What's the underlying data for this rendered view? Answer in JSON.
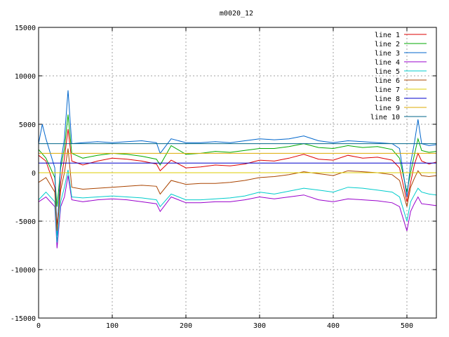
{
  "chart_data": {
    "type": "line",
    "title": "m0020_12",
    "xlabel": "",
    "ylabel": "",
    "xlim": [
      0,
      540
    ],
    "ylim": [
      -15000,
      15000
    ],
    "x_ticks": [
      0,
      100,
      200,
      300,
      400,
      500
    ],
    "y_ticks": [
      -15000,
      -10000,
      -5000,
      0,
      5000,
      10000,
      15000
    ],
    "grid": true,
    "legend_position": "top-right",
    "series": [
      {
        "name": "line 1",
        "color": "#dd0000",
        "values": [
          [
            0,
            1800
          ],
          [
            10,
            1200
          ],
          [
            22,
            -1500
          ],
          [
            25,
            -5500
          ],
          [
            30,
            -1000
          ],
          [
            35,
            1500
          ],
          [
            40,
            4500
          ],
          [
            45,
            1200
          ],
          [
            60,
            800
          ],
          [
            80,
            1200
          ],
          [
            100,
            1500
          ],
          [
            120,
            1400
          ],
          [
            140,
            1200
          ],
          [
            160,
            900
          ],
          [
            165,
            200
          ],
          [
            180,
            1300
          ],
          [
            200,
            500
          ],
          [
            220,
            600
          ],
          [
            240,
            800
          ],
          [
            260,
            700
          ],
          [
            280,
            900
          ],
          [
            300,
            1300
          ],
          [
            320,
            1200
          ],
          [
            340,
            1500
          ],
          [
            360,
            1900
          ],
          [
            380,
            1400
          ],
          [
            400,
            1300
          ],
          [
            420,
            1800
          ],
          [
            440,
            1500
          ],
          [
            460,
            1600
          ],
          [
            480,
            1300
          ],
          [
            490,
            500
          ],
          [
            500,
            -3000
          ],
          [
            505,
            -1000
          ],
          [
            510,
            800
          ],
          [
            515,
            2000
          ],
          [
            520,
            1200
          ],
          [
            530,
            900
          ],
          [
            540,
            1100
          ]
        ]
      },
      {
        "name": "line 2",
        "color": "#00aa00",
        "values": [
          [
            0,
            2400
          ],
          [
            10,
            1500
          ],
          [
            22,
            -500
          ],
          [
            25,
            -3500
          ],
          [
            30,
            500
          ],
          [
            35,
            2500
          ],
          [
            40,
            6000
          ],
          [
            45,
            2000
          ],
          [
            60,
            1500
          ],
          [
            80,
            1800
          ],
          [
            100,
            2000
          ],
          [
            120,
            1900
          ],
          [
            140,
            1700
          ],
          [
            160,
            1400
          ],
          [
            165,
            800
          ],
          [
            180,
            2800
          ],
          [
            200,
            1900
          ],
          [
            220,
            2000
          ],
          [
            240,
            2200
          ],
          [
            260,
            2100
          ],
          [
            280,
            2300
          ],
          [
            300,
            2500
          ],
          [
            320,
            2500
          ],
          [
            340,
            2700
          ],
          [
            360,
            3000
          ],
          [
            380,
            2600
          ],
          [
            400,
            2500
          ],
          [
            420,
            2800
          ],
          [
            440,
            2600
          ],
          [
            460,
            2700
          ],
          [
            480,
            2400
          ],
          [
            490,
            1500
          ],
          [
            500,
            -2000
          ],
          [
            505,
            0
          ],
          [
            510,
            1800
          ],
          [
            515,
            3500
          ],
          [
            520,
            2300
          ],
          [
            530,
            2100
          ],
          [
            540,
            2200
          ]
        ]
      },
      {
        "name": "line 3",
        "color": "#0066cc",
        "values": [
          [
            0,
            3000
          ],
          [
            5,
            5000
          ],
          [
            10,
            3500
          ],
          [
            22,
            500
          ],
          [
            25,
            -6500
          ],
          [
            30,
            1000
          ],
          [
            35,
            3500
          ],
          [
            40,
            8500
          ],
          [
            45,
            3000
          ],
          [
            60,
            3100
          ],
          [
            80,
            3200
          ],
          [
            100,
            3100
          ],
          [
            120,
            3200
          ],
          [
            140,
            3300
          ],
          [
            160,
            3100
          ],
          [
            165,
            2000
          ],
          [
            180,
            3500
          ],
          [
            200,
            3100
          ],
          [
            220,
            3100
          ],
          [
            240,
            3200
          ],
          [
            260,
            3100
          ],
          [
            280,
            3300
          ],
          [
            300,
            3500
          ],
          [
            320,
            3400
          ],
          [
            340,
            3500
          ],
          [
            360,
            3800
          ],
          [
            380,
            3300
          ],
          [
            400,
            3100
          ],
          [
            420,
            3300
          ],
          [
            440,
            3200
          ],
          [
            460,
            3100
          ],
          [
            480,
            3000
          ],
          [
            490,
            2500
          ],
          [
            500,
            -2500
          ],
          [
            505,
            1000
          ],
          [
            510,
            3000
          ],
          [
            515,
            5500
          ],
          [
            520,
            3000
          ],
          [
            530,
            2800
          ],
          [
            540,
            2900
          ]
        ]
      },
      {
        "name": "line 4",
        "color": "#9900cc",
        "values": [
          [
            0,
            -3000
          ],
          [
            10,
            -2500
          ],
          [
            22,
            -3500
          ],
          [
            25,
            -7800
          ],
          [
            30,
            -3500
          ],
          [
            35,
            -2500
          ],
          [
            40,
            -300
          ],
          [
            45,
            -2800
          ],
          [
            60,
            -3000
          ],
          [
            80,
            -2800
          ],
          [
            100,
            -2700
          ],
          [
            120,
            -2800
          ],
          [
            140,
            -3000
          ],
          [
            160,
            -3200
          ],
          [
            165,
            -4000
          ],
          [
            180,
            -2500
          ],
          [
            200,
            -3100
          ],
          [
            220,
            -3100
          ],
          [
            240,
            -3000
          ],
          [
            260,
            -3000
          ],
          [
            280,
            -2800
          ],
          [
            300,
            -2500
          ],
          [
            320,
            -2700
          ],
          [
            340,
            -2500
          ],
          [
            360,
            -2300
          ],
          [
            380,
            -2800
          ],
          [
            400,
            -3000
          ],
          [
            420,
            -2700
          ],
          [
            440,
            -2800
          ],
          [
            460,
            -2900
          ],
          [
            480,
            -3100
          ],
          [
            490,
            -3500
          ],
          [
            500,
            -6000
          ],
          [
            505,
            -4000
          ],
          [
            510,
            -3200
          ],
          [
            515,
            -2500
          ],
          [
            520,
            -3200
          ],
          [
            530,
            -3300
          ],
          [
            540,
            -3400
          ]
        ]
      },
      {
        "name": "line 5",
        "color": "#00cccc",
        "values": [
          [
            0,
            -2800
          ],
          [
            10,
            -2000
          ],
          [
            22,
            -3000
          ],
          [
            25,
            -7200
          ],
          [
            30,
            -3000
          ],
          [
            35,
            -1500
          ],
          [
            40,
            300
          ],
          [
            45,
            -2500
          ],
          [
            60,
            -2600
          ],
          [
            80,
            -2500
          ],
          [
            100,
            -2400
          ],
          [
            120,
            -2500
          ],
          [
            140,
            -2600
          ],
          [
            160,
            -2800
          ],
          [
            165,
            -3500
          ],
          [
            180,
            -2200
          ],
          [
            200,
            -2800
          ],
          [
            220,
            -2800
          ],
          [
            240,
            -2700
          ],
          [
            260,
            -2600
          ],
          [
            280,
            -2400
          ],
          [
            300,
            -2000
          ],
          [
            320,
            -2200
          ],
          [
            340,
            -1900
          ],
          [
            360,
            -1600
          ],
          [
            380,
            -1800
          ],
          [
            400,
            -2000
          ],
          [
            420,
            -1500
          ],
          [
            440,
            -1600
          ],
          [
            460,
            -1800
          ],
          [
            480,
            -2000
          ],
          [
            490,
            -2500
          ],
          [
            500,
            -5000
          ],
          [
            505,
            -3000
          ],
          [
            510,
            -2300
          ],
          [
            515,
            -1600
          ],
          [
            520,
            -2000
          ],
          [
            530,
            -2200
          ],
          [
            540,
            -2300
          ]
        ]
      },
      {
        "name": "line 6",
        "color": "#aa4400",
        "values": [
          [
            0,
            -1000
          ],
          [
            10,
            -500
          ],
          [
            22,
            -2000
          ],
          [
            25,
            -6000
          ],
          [
            30,
            -1800
          ],
          [
            35,
            0
          ],
          [
            40,
            2500
          ],
          [
            45,
            -1500
          ],
          [
            60,
            -1700
          ],
          [
            80,
            -1600
          ],
          [
            100,
            -1500
          ],
          [
            120,
            -1400
          ],
          [
            140,
            -1300
          ],
          [
            160,
            -1400
          ],
          [
            165,
            -2200
          ],
          [
            180,
            -800
          ],
          [
            200,
            -1200
          ],
          [
            220,
            -1100
          ],
          [
            240,
            -1100
          ],
          [
            260,
            -1000
          ],
          [
            280,
            -800
          ],
          [
            300,
            -500
          ],
          [
            320,
            -400
          ],
          [
            340,
            -200
          ],
          [
            360,
            100
          ],
          [
            380,
            -100
          ],
          [
            400,
            -300
          ],
          [
            420,
            200
          ],
          [
            440,
            100
          ],
          [
            460,
            0
          ],
          [
            480,
            -200
          ],
          [
            490,
            -800
          ],
          [
            500,
            -3500
          ],
          [
            505,
            -1500
          ],
          [
            510,
            -600
          ],
          [
            515,
            200
          ],
          [
            520,
            -300
          ],
          [
            530,
            -400
          ],
          [
            540,
            -300
          ]
        ]
      },
      {
        "name": "line 7",
        "color": "#ddcc00",
        "values": [
          [
            0,
            0
          ],
          [
            540,
            0
          ]
        ]
      },
      {
        "name": "line 8",
        "color": "#0000cc",
        "values": [
          [
            0,
            1000
          ],
          [
            540,
            1000
          ]
        ]
      },
      {
        "name": "line 9",
        "color": "#ddaa00",
        "values": [
          [
            0,
            2000
          ],
          [
            540,
            2000
          ]
        ]
      },
      {
        "name": "line 10",
        "color": "#006688",
        "values": [
          [
            0,
            3000
          ],
          [
            540,
            3000
          ]
        ]
      }
    ]
  }
}
